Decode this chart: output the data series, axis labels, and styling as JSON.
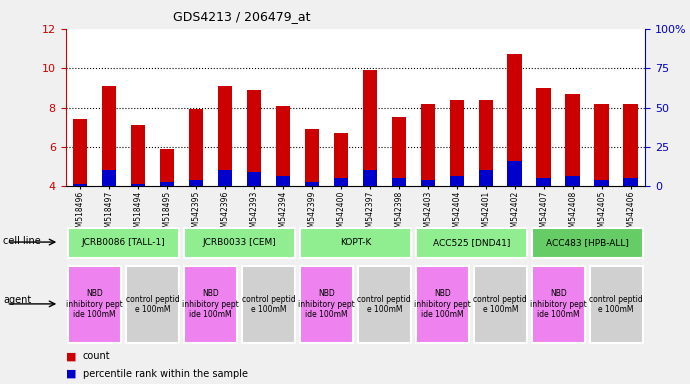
{
  "title": "GDS4213 / 206479_at",
  "samples": [
    "GSM518496",
    "GSM518497",
    "GSM518494",
    "GSM518495",
    "GSM542395",
    "GSM542396",
    "GSM542393",
    "GSM542394",
    "GSM542399",
    "GSM542400",
    "GSM542397",
    "GSM542398",
    "GSM542403",
    "GSM542404",
    "GSM542401",
    "GSM542402",
    "GSM542407",
    "GSM542408",
    "GSM542405",
    "GSM542406"
  ],
  "counts": [
    7.4,
    9.1,
    7.1,
    5.9,
    7.9,
    9.1,
    8.9,
    8.1,
    6.9,
    6.7,
    9.9,
    7.5,
    8.2,
    8.4,
    8.4,
    10.7,
    9.0,
    8.7,
    8.2,
    8.2
  ],
  "percentile": [
    4.1,
    4.8,
    4.1,
    4.2,
    4.3,
    4.8,
    4.7,
    4.5,
    4.2,
    4.4,
    4.8,
    4.4,
    4.3,
    4.5,
    4.8,
    5.3,
    4.4,
    4.5,
    4.3,
    4.4
  ],
  "bar_color": "#cc0000",
  "blue_color": "#0000cc",
  "ylim_left": [
    4,
    12
  ],
  "ylim_right": [
    0,
    100
  ],
  "yticks_left": [
    4,
    6,
    8,
    10,
    12
  ],
  "yticks_right": [
    0,
    25,
    50,
    75,
    100
  ],
  "cell_lines": [
    {
      "label": "JCRB0086 [TALL-1]",
      "start": 0,
      "end": 4,
      "color": "#90EE90"
    },
    {
      "label": "JCRB0033 [CEM]",
      "start": 4,
      "end": 8,
      "color": "#90EE90"
    },
    {
      "label": "KOPT-K",
      "start": 8,
      "end": 12,
      "color": "#90EE90"
    },
    {
      "label": "ACC525 [DND41]",
      "start": 12,
      "end": 16,
      "color": "#90EE90"
    },
    {
      "label": "ACC483 [HPB-ALL]",
      "start": 16,
      "end": 20,
      "color": "#66CC66"
    }
  ],
  "agents": [
    {
      "label": "NBD\ninhibitory pept\nide 100mM",
      "start": 0,
      "end": 2,
      "color": "#EE82EE"
    },
    {
      "label": "control peptid\ne 100mM",
      "start": 2,
      "end": 4,
      "color": "#d0d0d0"
    },
    {
      "label": "NBD\ninhibitory pept\nide 100mM",
      "start": 4,
      "end": 6,
      "color": "#EE82EE"
    },
    {
      "label": "control peptid\ne 100mM",
      "start": 6,
      "end": 8,
      "color": "#d0d0d0"
    },
    {
      "label": "NBD\ninhibitory pept\nide 100mM",
      "start": 8,
      "end": 10,
      "color": "#EE82EE"
    },
    {
      "label": "control peptid\ne 100mM",
      "start": 10,
      "end": 12,
      "color": "#d0d0d0"
    },
    {
      "label": "NBD\ninhibitory pept\nide 100mM",
      "start": 12,
      "end": 14,
      "color": "#EE82EE"
    },
    {
      "label": "control peptid\ne 100mM",
      "start": 14,
      "end": 16,
      "color": "#d0d0d0"
    },
    {
      "label": "NBD\ninhibitory pept\nide 100mM",
      "start": 16,
      "end": 18,
      "color": "#EE82EE"
    },
    {
      "label": "control peptid\ne 100mM",
      "start": 18,
      "end": 20,
      "color": "#d0d0d0"
    }
  ],
  "legend_count_color": "#cc0000",
  "legend_pct_color": "#0000cc",
  "left_axis_color": "#cc0000",
  "right_axis_color": "#0000cc",
  "bg_color": "#f0f0f0",
  "plot_bg": "#ffffff"
}
